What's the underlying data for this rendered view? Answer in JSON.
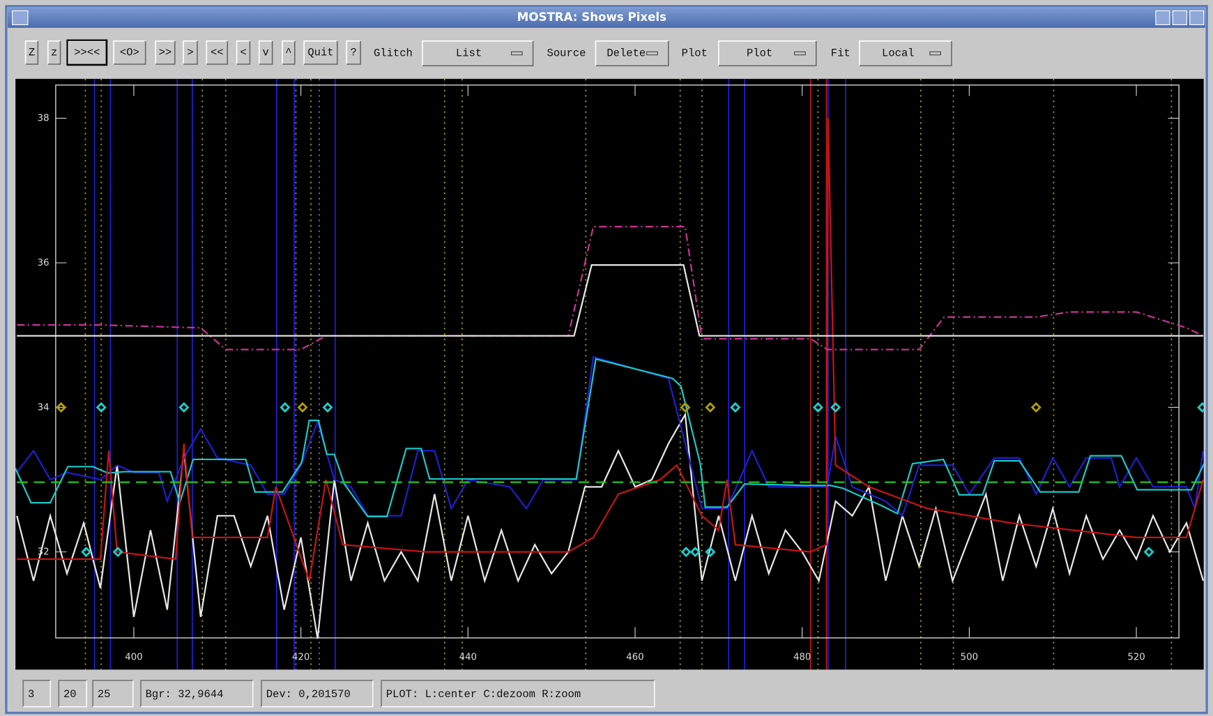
{
  "window": {
    "title": "MOSTRA: Shows Pixels"
  },
  "toolbar": {
    "buttons": [
      "Z",
      "z",
      ">><<",
      "<O>",
      ">>",
      ">",
      "<<",
      "<",
      "v",
      "^",
      "Quit",
      "?"
    ],
    "menus": [
      {
        "label": "Glitch",
        "value": "List"
      },
      {
        "label": "Source",
        "value": "Delete"
      },
      {
        "label": "Plot",
        "value": "Plot"
      },
      {
        "label": "Fit",
        "value": "Local"
      }
    ]
  },
  "status": [
    "3",
    "20",
    "25",
    "Bgr: 32,9644",
    "Dev: 0,201570",
    "PLOT: L:center C:dezoom R:zoom"
  ],
  "chart_data": {
    "type": "line",
    "xlim": [
      390.65,
      525.1
    ],
    "ylim": [
      30.81,
      38.46
    ],
    "xticks": [
      400,
      420,
      440,
      460,
      480,
      500,
      520
    ],
    "yticks": [
      32,
      34,
      36,
      38
    ],
    "series": [
      {
        "color": "#e8e8e8",
        "style": "solid",
        "x": [
          386,
          388,
          390,
          392,
          394,
          396,
          398,
          400,
          402,
          404,
          406,
          408,
          410,
          412,
          414,
          416,
          418,
          420,
          422,
          424,
          426,
          428,
          430,
          432,
          434,
          436,
          438,
          440,
          442,
          444,
          446,
          448,
          450,
          452,
          454,
          456,
          458,
          460,
          462,
          464,
          466,
          468,
          470,
          472,
          474,
          476,
          478,
          480,
          482,
          484,
          486,
          488,
          490,
          492,
          494,
          496,
          498,
          500,
          502,
          504,
          506,
          508,
          510,
          512,
          514,
          516,
          518,
          520,
          522,
          524,
          526,
          528
        ],
        "values": [
          32.5,
          31.6,
          32.5,
          31.7,
          32.4,
          31.5,
          33.2,
          31.1,
          32.3,
          31.2,
          33.4,
          31.1,
          32.5,
          32.5,
          31.8,
          32.5,
          31.2,
          32.2,
          30.8,
          33.0,
          31.6,
          32.4,
          31.6,
          32.0,
          31.6,
          32.8,
          31.6,
          32.5,
          31.6,
          32.3,
          31.6,
          32.1,
          31.7,
          32.0,
          32.9,
          32.9,
          33.4,
          32.9,
          33.0,
          33.5,
          33.9,
          31.6,
          32.5,
          31.6,
          32.5,
          31.7,
          32.3,
          32.0,
          31.6,
          32.7,
          32.5,
          32.9,
          31.6,
          32.5,
          31.8,
          32.6,
          31.6,
          32.2,
          32.8,
          31.6,
          32.5,
          31.8,
          32.6,
          31.7,
          32.5,
          31.9,
          32.3,
          31.9,
          32.5,
          32.0,
          32.4,
          31.6
        ]
      },
      {
        "color": "#1e1ed2",
        "style": "solid",
        "x": [
          386,
          388,
          390,
          392,
          396,
          398,
          400,
          403,
          404,
          406,
          408,
          410,
          414,
          416,
          418,
          420,
          422,
          424,
          426,
          428,
          432,
          434,
          436,
          438,
          440,
          445,
          447,
          449,
          453,
          455,
          464,
          466,
          468,
          471,
          474,
          476,
          481,
          483,
          484,
          486,
          490,
          492,
          494,
          498,
          500,
          503,
          506,
          508,
          510,
          512,
          514,
          517,
          518,
          520,
          522,
          526,
          527,
          528
        ],
        "values": [
          33.1,
          33.4,
          33.0,
          33.1,
          33.0,
          33.2,
          33.1,
          33.1,
          32.7,
          33.3,
          33.7,
          33.3,
          33.2,
          32.8,
          32.8,
          33.2,
          33.8,
          33.0,
          32.9,
          32.5,
          32.5,
          33.4,
          33.4,
          32.6,
          33.0,
          32.9,
          32.6,
          33.0,
          33.0,
          34.7,
          34.4,
          33.5,
          32.6,
          32.6,
          33.4,
          32.9,
          32.9,
          32.9,
          33.6,
          32.9,
          32.7,
          32.5,
          33.2,
          33.2,
          32.8,
          33.3,
          33.3,
          32.8,
          33.3,
          32.9,
          33.3,
          33.3,
          32.9,
          33.3,
          32.9,
          32.9,
          32.6,
          33.4
        ]
      },
      {
        "color": "#19c8c8",
        "style": "solid",
        "x": [
          385.8,
          387.7,
          390.0,
          392.1,
          395.1,
          396.9,
          398.8,
          404.4,
          405.5,
          407.1,
          413.4,
          414.5,
          417.8,
          420.1,
          421.0,
          422.1,
          423.1,
          424.0,
          425.2,
          428.0,
          430.3,
          432.6,
          434.4,
          435.4,
          452.96,
          455.3,
          464.5,
          465.5,
          467.8,
          468.4,
          471.0,
          473.1,
          480.3,
          483.4,
          484.9,
          489.5,
          491.4,
          493.2,
          496.9,
          498.8,
          501.6,
          503.0,
          506.0,
          508.5,
          513.1,
          514.5,
          518.2,
          520.1,
          526.6,
          528.1
        ],
        "values": [
          33.16,
          32.68,
          32.68,
          33.18,
          33.18,
          33.09,
          33.11,
          33.11,
          32.68,
          33.28,
          33.28,
          32.83,
          32.83,
          33.24,
          33.82,
          33.82,
          33.35,
          33.35,
          32.94,
          32.49,
          32.49,
          33.43,
          33.43,
          33.01,
          33.01,
          34.67,
          34.4,
          34.29,
          33.22,
          32.62,
          32.62,
          32.94,
          32.92,
          32.92,
          32.88,
          32.64,
          32.53,
          33.22,
          33.28,
          32.79,
          32.79,
          33.26,
          33.26,
          32.83,
          32.83,
          33.33,
          33.33,
          32.86,
          32.86,
          33.22
        ]
      },
      {
        "color": "#c81414",
        "style": "solid",
        "x": [
          386,
          396,
          397,
          398,
          405,
          406,
          407,
          416,
          417,
          421,
          423,
          425,
          435,
          452,
          455,
          458,
          463,
          465,
          468,
          470,
          471,
          472,
          481,
          482.9,
          483.1,
          484,
          488,
          495,
          505,
          520,
          526,
          528
        ],
        "values": [
          31.9,
          31.9,
          33.4,
          32.0,
          31.9,
          33.5,
          32.2,
          32.2,
          32.9,
          31.6,
          33.0,
          32.1,
          32.0,
          32.0,
          32.2,
          32.8,
          33.0,
          33.2,
          32.5,
          32.3,
          33.0,
          32.1,
          32.0,
          32.1,
          38.0,
          33.2,
          32.9,
          32.6,
          32.4,
          32.2,
          32.2,
          33.0
        ]
      },
      {
        "color": "#c83296",
        "style": "dashdot",
        "x": [
          386,
          396,
          408,
          411,
          420,
          423,
          452,
          455,
          466,
          468,
          481,
          483,
          494,
          497,
          508,
          512,
          520,
          526,
          528
        ],
        "values": [
          35.14,
          35.14,
          35.1,
          34.8,
          34.8,
          34.99,
          34.99,
          36.5,
          36.5,
          34.95,
          34.95,
          34.8,
          34.8,
          35.25,
          35.25,
          35.32,
          35.32,
          35.1,
          34.99
        ]
      },
      {
        "color": "#e8e8e8",
        "style": "solid",
        "x": [
          386,
          452.7,
          454.8,
          465.8,
          467.7,
          528
        ],
        "values": [
          34.99,
          34.99,
          35.97,
          35.97,
          34.99,
          34.99
        ]
      },
      {
        "color": "#1ec81e",
        "style": "dashed",
        "x": [
          386,
          528
        ],
        "values": [
          32.9644,
          32.9644
        ]
      }
    ],
    "vlines": [
      {
        "color": "#a0a000",
        "style": "dotted",
        "x": [
          394.2,
          396.1,
          408.2,
          411.0,
          419.4,
          421.2,
          437.2,
          439.3,
          454.1,
          465.4,
          468.0,
          481.9,
          494.2,
          498.1,
          510.1,
          524.2
        ]
      },
      {
        "color": "#1e1ed2",
        "style": "solid",
        "x": [
          395.3,
          397.2,
          405.2,
          407.0,
          417.1,
          419.2,
          424.1,
          471.2,
          473.1,
          483.1,
          485.2
        ]
      },
      {
        "color": "#7a5ae6",
        "style": "dotted",
        "x": [
          422.2
        ]
      },
      {
        "color": "#c81414",
        "style": "solid",
        "x": [
          481.0,
          482.9
        ]
      }
    ],
    "markers": [
      {
        "color": "#19d2d2",
        "x": [
          396.1,
          406.0,
          418.1,
          423.2,
          472.0,
          481.9,
          484.0,
          527.9,
          394.3,
          398.1,
          466.1,
          467.2,
          469.0,
          521.5
        ],
        "values": [
          34,
          34,
          34,
          34,
          34,
          34,
          34,
          34,
          32,
          32,
          32,
          32,
          32,
          32
        ]
      },
      {
        "color": "#b4a000",
        "x": [
          391.3,
          420.2,
          466.0,
          469.0,
          508.0
        ],
        "values": [
          34,
          34,
          34,
          34,
          34
        ]
      }
    ]
  }
}
